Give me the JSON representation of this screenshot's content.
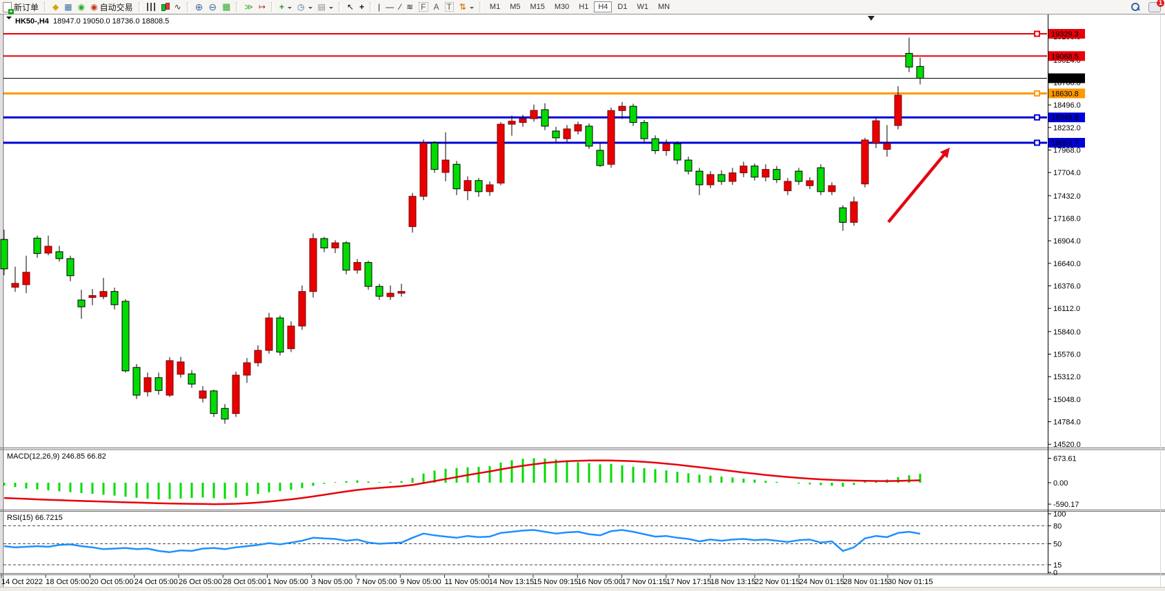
{
  "toolbar": {
    "new_order_label": "新订单",
    "auto_trading_label": "自动交易",
    "timeframes": [
      "M1",
      "M5",
      "M15",
      "M30",
      "H1",
      "H4",
      "D1",
      "W1",
      "MN"
    ],
    "active_timeframe": "H4",
    "notification_badge": "1"
  },
  "chart": {
    "title": "HK50-,H4",
    "ohlc_text": "18947.0 19050.0 18736.0 18808.5",
    "macd_label": "MACD(12,26,9)",
    "macd_values": "246.85 66.82",
    "rsi_label": "RSI(15)",
    "rsi_value": "66.7215"
  },
  "chart_data": {
    "type": "candlestick",
    "symbol": "HK50-",
    "timeframe": "H4",
    "last_ohlc": {
      "open": 18947.0,
      "high": 19050.0,
      "low": 18736.0,
      "close": 18808.5
    },
    "up_color": "#e80000",
    "down_color": "#00dc00",
    "candles": [
      [
        16920,
        17035,
        16500,
        16575
      ],
      [
        16360,
        16600,
        16305,
        16405
      ],
      [
        16390,
        16730,
        16290,
        16535
      ],
      [
        16935,
        16965,
        16705,
        16755
      ],
      [
        16760,
        16965,
        16735,
        16840
      ],
      [
        16776,
        16845,
        16660,
        16695
      ],
      [
        16695,
        16730,
        16430,
        16495
      ],
      [
        16210,
        16330,
        15990,
        16130
      ],
      [
        16240,
        16340,
        16150,
        16262
      ],
      [
        16250,
        16470,
        16220,
        16310
      ],
      [
        16310,
        16355,
        16100,
        16155
      ],
      [
        16195,
        16220,
        15360,
        15380
      ],
      [
        15420,
        15460,
        15050,
        15095
      ],
      [
        15135,
        15360,
        15080,
        15300
      ],
      [
        15300,
        15360,
        15100,
        15150
      ],
      [
        15095,
        15540,
        15075,
        15500
      ],
      [
        15340,
        15545,
        15300,
        15485
      ],
      [
        15345,
        15390,
        15180,
        15225
      ],
      [
        15060,
        15200,
        15010,
        15145
      ],
      [
        15145,
        15160,
        14840,
        14880
      ],
      [
        14940,
        14990,
        14760,
        14815
      ],
      [
        14880,
        15370,
        14840,
        15330
      ],
      [
        15330,
        15530,
        15240,
        15475
      ],
      [
        15475,
        15680,
        15430,
        15620
      ],
      [
        15620,
        16060,
        15580,
        16000
      ],
      [
        16000,
        16030,
        15560,
        15600
      ],
      [
        15640,
        15960,
        15600,
        15905
      ],
      [
        15905,
        16380,
        15860,
        16310
      ],
      [
        16310,
        16990,
        16240,
        16930
      ],
      [
        16930,
        16950,
        16770,
        16820
      ],
      [
        16820,
        16910,
        16760,
        16880
      ],
      [
        16880,
        16900,
        16510,
        16560
      ],
      [
        16560,
        16690,
        16520,
        16650
      ],
      [
        16650,
        16670,
        16330,
        16370
      ],
      [
        16370,
        16400,
        16210,
        16255
      ],
      [
        16250,
        16380,
        16210,
        16290
      ],
      [
        16290,
        16400,
        16250,
        16310
      ],
      [
        17070,
        17465,
        17000,
        17425
      ],
      [
        17425,
        18090,
        17380,
        18050
      ],
      [
        18050,
        18070,
        17700,
        17740
      ],
      [
        17705,
        18175,
        17600,
        17850
      ],
      [
        17800,
        17840,
        17440,
        17513
      ],
      [
        17490,
        17660,
        17380,
        17610
      ],
      [
        17610,
        17640,
        17420,
        17480
      ],
      [
        17480,
        17600,
        17430,
        17560
      ],
      [
        17580,
        18295,
        17555,
        18270
      ],
      [
        18270,
        18370,
        18135,
        18305
      ],
      [
        18290,
        18380,
        18240,
        18335
      ],
      [
        18335,
        18500,
        18300,
        18432
      ],
      [
        18440,
        18515,
        18200,
        18247
      ],
      [
        18190,
        18240,
        18060,
        18110
      ],
      [
        18100,
        18260,
        18060,
        18215
      ],
      [
        18190,
        18300,
        18150,
        18265
      ],
      [
        18247,
        18280,
        17980,
        18013
      ],
      [
        17964,
        18050,
        17770,
        17786
      ],
      [
        17800,
        18465,
        17760,
        18430
      ],
      [
        18430,
        18530,
        18330,
        18480
      ],
      [
        18480,
        18510,
        18250,
        18290
      ],
      [
        18290,
        18320,
        18060,
        18100
      ],
      [
        18100,
        18140,
        17920,
        17960
      ],
      [
        17960,
        18090,
        17900,
        18040
      ],
      [
        18040,
        18070,
        17800,
        17850
      ],
      [
        17850,
        17890,
        17680,
        17720
      ],
      [
        17720,
        17760,
        17440,
        17560
      ],
      [
        17560,
        17720,
        17520,
        17680
      ],
      [
        17680,
        17730,
        17560,
        17600
      ],
      [
        17600,
        17760,
        17560,
        17700
      ],
      [
        17700,
        17830,
        17650,
        17780
      ],
      [
        17780,
        17810,
        17610,
        17650
      ],
      [
        17650,
        17800,
        17600,
        17740
      ],
      [
        17740,
        17780,
        17580,
        17620
      ],
      [
        17490,
        17640,
        17440,
        17600
      ],
      [
        17720,
        17760,
        17560,
        17600
      ],
      [
        17550,
        17650,
        17510,
        17608
      ],
      [
        17760,
        17800,
        17440,
        17480
      ],
      [
        17480,
        17590,
        17440,
        17550
      ],
      [
        17290,
        17320,
        17020,
        17120
      ],
      [
        17120,
        17420,
        17080,
        17360
      ],
      [
        17570,
        18110,
        17530,
        18085
      ],
      [
        18050,
        18350,
        17990,
        18310
      ],
      [
        17975,
        18260,
        17890,
        18045
      ],
      [
        18255,
        18715,
        18210,
        18610
      ],
      [
        19100,
        19285,
        18880,
        18940
      ],
      [
        18947,
        19050,
        18736,
        18808.5
      ]
    ],
    "price_axis_ticks": [
      19296,
      19024,
      18760,
      18496,
      18232,
      17968,
      17704,
      17432,
      17168,
      16904,
      16640,
      16376,
      16112,
      15840,
      15576,
      15312,
      15048,
      14784,
      14520
    ],
    "price_levels": [
      {
        "label": "19329.3",
        "value": 19329.3,
        "color": "#e8000a",
        "width": 2,
        "marker": true
      },
      {
        "label": "19068.5",
        "value": 19068.5,
        "color": "#e8000a",
        "width": 2,
        "marker": false
      },
      {
        "label": "18808.5",
        "value": 18808.5,
        "color": "#000000",
        "width": 1,
        "marker": false
      },
      {
        "label": "18630.8",
        "value": 18630.8,
        "color": "#ff9900",
        "width": 3,
        "marker": true
      },
      {
        "label": "18349.8",
        "value": 18349.8,
        "color": "#0000d8",
        "width": 3,
        "marker": true
      },
      {
        "label": "18052.7",
        "value": 18052.7,
        "color": "#0000d8",
        "width": 3,
        "marker": true
      }
    ],
    "time_labels": [
      "14 Oct 2022",
      "18 Oct 05:00",
      "20 Oct 05:00",
      "24 Oct 05:00",
      "26 Oct 05:00",
      "28 Oct 05:00",
      "1 Nov 05:00",
      "3 Nov 05:00",
      "7 Nov 05:00",
      "9 Nov 05:00",
      "11 Nov 05:00",
      "14 Nov 13:15",
      "15 Nov 09:15",
      "16 Nov 05:00",
      "17 Nov 01:15",
      "17 Nov 17:15",
      "18 Nov 13:15",
      "22 Nov 01:15",
      "24 Nov 01:15",
      "28 Nov 01:15",
      "30 Nov 01:15"
    ],
    "macd": {
      "axis_labels": [
        "673.61",
        "0.00",
        "-590.17"
      ],
      "histogram_color": "#00dc00",
      "signal_color": "#e8000a",
      "histogram": [
        -80,
        -120,
        -160,
        -185,
        -210,
        -235,
        -260,
        -285,
        -305,
        -330,
        -355,
        -385,
        -415,
        -440,
        -460,
        -450,
        -435,
        -420,
        -405,
        -425,
        -445,
        -410,
        -360,
        -310,
        -260,
        -230,
        -195,
        -150,
        -85,
        -30,
        15,
        45,
        65,
        35,
        15,
        25,
        45,
        130,
        255,
        335,
        385,
        405,
        425,
        435,
        455,
        555,
        620,
        660,
        673.61,
        665,
        640,
        605,
        565,
        540,
        505,
        520,
        480,
        440,
        400,
        375,
        340,
        300,
        260,
        220,
        195,
        170,
        145,
        115,
        85,
        55,
        25,
        0,
        -25,
        -45,
        -65,
        -85,
        -110,
        -60,
        30,
        60,
        90,
        155,
        205,
        246.85
      ],
      "signal": [
        -420,
        -432,
        -445,
        -457,
        -470,
        -481,
        -492,
        -502,
        -512,
        -521,
        -530,
        -539,
        -548,
        -556,
        -564,
        -571,
        -577,
        -582,
        -586,
        -590.17,
        -588,
        -580,
        -565,
        -545,
        -520,
        -490,
        -458,
        -420,
        -378,
        -332,
        -285,
        -240,
        -200,
        -168,
        -142,
        -120,
        -95,
        -60,
        -10,
        45,
        100,
        155,
        210,
        262,
        312,
        368,
        420,
        468,
        510,
        545,
        572,
        592,
        605,
        612,
        615,
        612,
        605,
        592,
        575,
        552,
        525,
        495,
        462,
        428,
        392,
        355,
        318,
        282,
        248,
        215,
        185,
        158,
        133,
        112,
        93,
        78,
        66,
        58,
        52,
        48,
        45,
        50,
        58,
        66.82
      ]
    },
    "rsi": {
      "axis_labels": [
        "100",
        "80",
        "50",
        "15",
        "0"
      ],
      "guide_levels": [
        80,
        50,
        15
      ],
      "line_color": "#1e90ff",
      "series": [
        46,
        44,
        45,
        46,
        45,
        48,
        49,
        46,
        44,
        41,
        42,
        43,
        41,
        42,
        38,
        36,
        39,
        38,
        42,
        43,
        41,
        44,
        46,
        48,
        51,
        49,
        52,
        55,
        60,
        59,
        58,
        55,
        57,
        52,
        50,
        51,
        52,
        60,
        67,
        64,
        62,
        60,
        63,
        61,
        62,
        68,
        70,
        72,
        73,
        70,
        67,
        69,
        70,
        66,
        64,
        71,
        73,
        70,
        66,
        62,
        63,
        60,
        58,
        54,
        57,
        55,
        57,
        58,
        56,
        57,
        55,
        53,
        56,
        57,
        52,
        54,
        38,
        44,
        59,
        63,
        61,
        68,
        70,
        66.72
      ]
    },
    "annotation_arrow_color": "#e30613"
  }
}
